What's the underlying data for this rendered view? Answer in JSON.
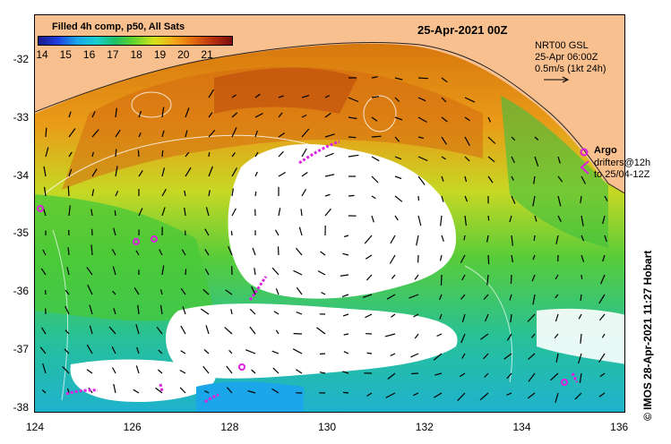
{
  "colorbar": {
    "title": "Filled 4h comp, p50, All Sats",
    "labels": [
      "14",
      "15",
      "16",
      "17",
      "18",
      "19",
      "20",
      "21"
    ]
  },
  "date_label": "25-Apr-2021 00Z",
  "current_info": {
    "line1": "NRT00 GSL",
    "line2": "25-Apr 06:00Z",
    "line3": "0.5m/s (1kt 24h)"
  },
  "argo_legend": {
    "title": "Argo",
    "drifters_line1": "drifters@12h",
    "drifters_line2": "to 25/04-12Z"
  },
  "side_label": "© IMOS 28-Apr-2021 11:27 Hobart",
  "axes": {
    "x_ticks": [
      "124",
      "126",
      "128",
      "130",
      "132",
      "134",
      "136"
    ],
    "y_ticks": [
      "-32",
      "-33",
      "-34",
      "-35",
      "-36",
      "-37",
      "-38"
    ]
  },
  "colors": {
    "land": "#f9c08f",
    "cloud_gap": "#ffffff",
    "argo": "#e020e0"
  },
  "icons": [
    "arrow-icon",
    "argo-float-icon",
    "drifter-icon"
  ]
}
